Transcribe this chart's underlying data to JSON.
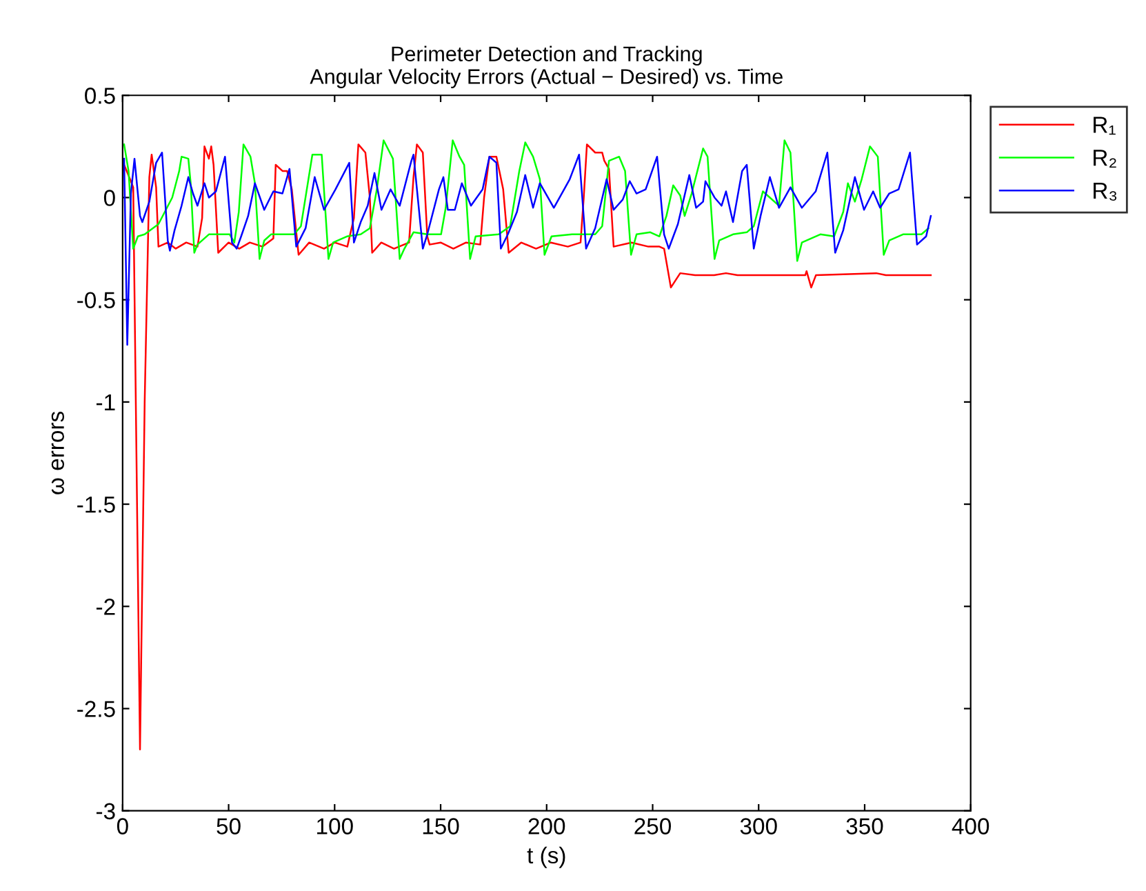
{
  "chart_data": {
    "type": "line",
    "title": "Perimeter Detection and Tracking\nAngular Velocity Errors (Actual − Desired) vs. Time",
    "xlabel": "t (s)",
    "ylabel": "ω errors",
    "xlim": [
      0,
      400
    ],
    "xticks": [
      0,
      50,
      100,
      150,
      200,
      250,
      300,
      350,
      400
    ],
    "ylim": [
      -3,
      0.5
    ],
    "yticks": [
      -3,
      -2.5,
      -2,
      -1.5,
      -1,
      -0.5,
      0,
      0.5
    ],
    "grid": false,
    "legend": "right",
    "marker": "none",
    "line_style": "solid",
    "series": [
      {
        "name": "R₁",
        "color": "#ff0000",
        "x": [
          0.7,
          3.9,
          5.0,
          8.2,
          10.4,
          12.6,
          13.7,
          15.8,
          16.9,
          21.3,
          25,
          30,
          35.3,
          37.5,
          38.6,
          40.7,
          41.8,
          42.9,
          45.1,
          50,
          55,
          60,
          66,
          71.1,
          72.2,
          75.4,
          77.6,
          79.8,
          83.0,
          88,
          95,
          100,
          106,
          109.1,
          111.2,
          114.5,
          116.6,
          117.7,
          122,
          128,
          135.1,
          137.2,
          138.8,
          141.6,
          143.7,
          144.8,
          150,
          156,
          162,
          168.7,
          170.5,
          173,
          176.3,
          179.5,
          182.1,
          188,
          195,
          202,
          210,
          216,
          217.5,
          219.0,
          222.9,
          226.2,
          227.2,
          229.4,
          231.6,
          240,
          248,
          253.2,
          255.4,
          258.6,
          263.0,
          270,
          279,
          284.6,
          290,
          322,
          322.6,
          324.8,
          327,
          355.5,
          360,
          381.2
        ],
        "values": [
          0.16,
          0.08,
          0.05,
          -2.7,
          -1.0,
          0.1,
          0.21,
          0.05,
          -0.24,
          -0.22,
          -0.25,
          -0.22,
          -0.24,
          -0.1,
          0.25,
          0.19,
          0.25,
          0.16,
          -0.27,
          -0.22,
          -0.25,
          -0.22,
          -0.24,
          -0.2,
          0.16,
          0.13,
          0.13,
          0.04,
          -0.28,
          -0.22,
          -0.25,
          -0.22,
          -0.24,
          -0.1,
          0.26,
          0.22,
          0.0,
          -0.27,
          -0.22,
          -0.25,
          -0.22,
          0.1,
          0.26,
          0.22,
          -0.19,
          -0.23,
          -0.22,
          -0.25,
          -0.22,
          -0.23,
          0.0,
          0.2,
          0.2,
          0.04,
          -0.27,
          -0.22,
          -0.25,
          -0.22,
          -0.24,
          -0.22,
          0.0,
          0.26,
          0.22,
          0.22,
          0.18,
          0.14,
          -0.24,
          -0.22,
          -0.24,
          -0.24,
          -0.25,
          -0.44,
          -0.37,
          -0.38,
          -0.38,
          -0.37,
          -0.38,
          -0.38,
          -0.36,
          -0.44,
          -0.38,
          -0.37,
          -0.38,
          -0.38
        ]
      },
      {
        "name": "R₂",
        "color": "#00ff00",
        "x": [
          0.7,
          2.8,
          5.0,
          7.2,
          10.4,
          16.9,
          23.4,
          26.7,
          27.8,
          31.0,
          32.1,
          33.8,
          35.3,
          40.7,
          50.5,
          52.7,
          54.8,
          57.0,
          60.3,
          62.4,
          64.6,
          66.8,
          70,
          80.9,
          84.1,
          89.5,
          93.9,
          97.1,
          99.3,
          105.8,
          112.3,
          116.6,
          119.9,
          123.1,
          127.5,
          130.7,
          132.9,
          137.2,
          143.7,
          150.2,
          152.4,
          155.7,
          158.9,
          161.1,
          163.9,
          166.5,
          177.4,
          182.8,
          187.1,
          189.9,
          193.6,
          196.8,
          199.0,
          202.3,
          212,
          222.9,
          226.2,
          229.4,
          234.2,
          237.0,
          239.8,
          242.4,
          248.9,
          253.2,
          256.5,
          259.7,
          263.0,
          265.1,
          268.4,
          273.8,
          275.9,
          279.2,
          281.4,
          287.9,
          294.4,
          297.7,
          302.0,
          305.3,
          309.6,
          312.2,
          315.0,
          318.2,
          320.4,
          329.1,
          335.6,
          339.9,
          342.1,
          345.4,
          348.6,
          352.5,
          356.2,
          359.0,
          361.6,
          368.1,
          376.8,
          380.1
        ],
        "values": [
          0.26,
          0.13,
          -0.25,
          -0.19,
          -0.18,
          -0.13,
          0.0,
          0.13,
          0.2,
          0.19,
          0.07,
          -0.27,
          -0.23,
          -0.18,
          -0.18,
          -0.22,
          -0.07,
          0.26,
          0.2,
          0.07,
          -0.3,
          -0.21,
          -0.18,
          -0.18,
          -0.14,
          0.21,
          0.21,
          -0.3,
          -0.22,
          -0.19,
          -0.18,
          -0.15,
          0.04,
          0.28,
          0.19,
          -0.3,
          -0.25,
          -0.17,
          -0.18,
          -0.18,
          -0.05,
          0.28,
          0.2,
          0.16,
          -0.3,
          -0.19,
          -0.18,
          -0.14,
          0.13,
          0.27,
          0.2,
          0.09,
          -0.28,
          -0.19,
          -0.18,
          -0.18,
          -0.14,
          0.18,
          0.2,
          0.13,
          -0.28,
          -0.18,
          -0.17,
          -0.19,
          -0.09,
          0.06,
          0.01,
          -0.09,
          0.02,
          0.24,
          0.2,
          -0.3,
          -0.21,
          -0.18,
          -0.17,
          -0.14,
          0.03,
          0.0,
          -0.04,
          0.28,
          0.22,
          -0.31,
          -0.22,
          -0.18,
          -0.19,
          -0.07,
          0.07,
          -0.02,
          0.09,
          0.25,
          0.2,
          -0.28,
          -0.21,
          -0.18,
          -0.18,
          -0.15
        ]
      },
      {
        "name": "R₃",
        "color": "#0000ff",
        "x": [
          0.7,
          2.2,
          3.9,
          5.6,
          8.2,
          9.3,
          12.6,
          15.8,
          18.6,
          21.3,
          22.3,
          24.5,
          27.8,
          31.0,
          33.2,
          35.3,
          38.6,
          40.7,
          44.0,
          48.3,
          51.6,
          53.8,
          55.9,
          59.2,
          62.4,
          66.8,
          71.1,
          75.4,
          78.7,
          81.9,
          86.3,
          90.6,
          95.0,
          100.4,
          106.9,
          109.1,
          112.3,
          115.6,
          118.8,
          122.1,
          126.4,
          130.7,
          136.2,
          137.2,
          141.6,
          143.7,
          149.2,
          151.3,
          153.4,
          156.7,
          160.0,
          164.3,
          169.8,
          173.0,
          176.3,
          178.4,
          181.7,
          186.0,
          189.9,
          193.6,
          196.8,
          203.4,
          207.7,
          210.9,
          215.3,
          218.6,
          222.9,
          228.3,
          231.6,
          235.9,
          239.2,
          242.4,
          246.7,
          252.1,
          255.4,
          257.6,
          261.9,
          267.3,
          270.5,
          273.8,
          274.9,
          279.2,
          282.5,
          284.6,
          287.9,
          292.2,
          294.4,
          297.7,
          300.9,
          305.3,
          309.6,
          315.0,
          320.4,
          326.9,
          332.4,
          336.1,
          339.9,
          345.4,
          349.7,
          354.0,
          357.3,
          361.6,
          366.0,
          371.4,
          374.7,
          379.0,
          381.2
        ],
        "values": [
          0.19,
          -0.72,
          0.02,
          0.19,
          -0.09,
          -0.12,
          -0.02,
          0.17,
          0.22,
          -0.21,
          -0.26,
          -0.16,
          -0.04,
          0.1,
          0.02,
          -0.04,
          0.07,
          0.0,
          0.03,
          0.2,
          -0.22,
          -0.25,
          -0.19,
          -0.09,
          0.07,
          -0.06,
          0.03,
          0.02,
          0.14,
          -0.24,
          -0.15,
          0.1,
          -0.06,
          0.04,
          0.17,
          -0.22,
          -0.12,
          -0.04,
          0.12,
          -0.06,
          0.04,
          -0.04,
          0.18,
          0.21,
          -0.25,
          -0.18,
          0.04,
          0.1,
          -0.06,
          -0.06,
          0.07,
          -0.04,
          0.04,
          0.2,
          0.17,
          -0.25,
          -0.18,
          -0.07,
          0.11,
          -0.05,
          0.07,
          -0.05,
          0.03,
          0.09,
          0.21,
          -0.25,
          -0.15,
          0.09,
          -0.06,
          -0.01,
          0.08,
          0.02,
          0.04,
          0.2,
          -0.18,
          -0.25,
          -0.13,
          0.11,
          -0.05,
          -0.02,
          0.08,
          0.0,
          -0.04,
          0.03,
          -0.12,
          0.13,
          0.16,
          -0.25,
          -0.09,
          0.1,
          -0.05,
          0.05,
          -0.05,
          0.03,
          0.22,
          -0.27,
          -0.16,
          0.1,
          -0.06,
          0.03,
          -0.05,
          0.02,
          0.04,
          0.22,
          -0.23,
          -0.19,
          -0.09
        ]
      }
    ]
  }
}
